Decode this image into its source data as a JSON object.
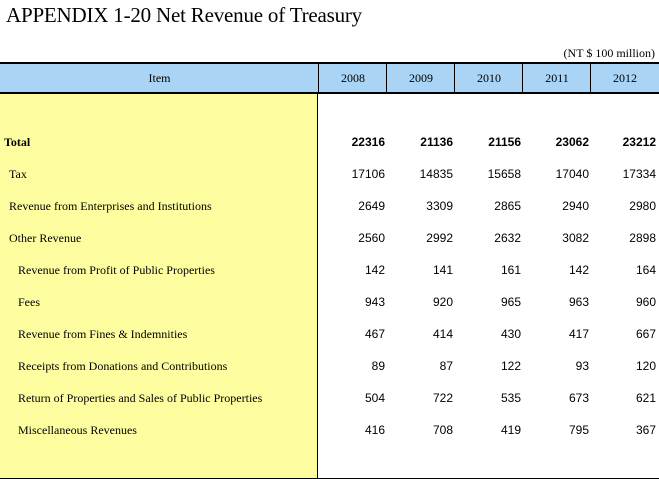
{
  "title": "APPENDIX 1-20  Net Revenue of Treasury",
  "unit": "(NT $ 100 million)",
  "table": {
    "headers": [
      "Item",
      "2008",
      "2009",
      "2010",
      "2011",
      "2012"
    ],
    "rows": [
      {
        "label": "Total",
        "values": [
          "22316",
          "21136",
          "21156",
          "23062",
          "23212"
        ]
      },
      {
        "label": "Tax",
        "values": [
          "17106",
          "14835",
          "15658",
          "17040",
          "17334"
        ]
      },
      {
        "label": "Revenue from Enterprises and Institutions",
        "values": [
          "2649",
          "3309",
          "2865",
          "2940",
          "2980"
        ]
      },
      {
        "label": "Other Revenue",
        "values": [
          "2560",
          "2992",
          "2632",
          "3082",
          "2898"
        ]
      },
      {
        "label": "Revenue from Profit of Public Properties",
        "values": [
          "142",
          "141",
          "161",
          "142",
          "164"
        ]
      },
      {
        "label": "Fees",
        "values": [
          "943",
          "920",
          "965",
          "963",
          "960"
        ]
      },
      {
        "label": "Revenue from Fines & Indemnities",
        "values": [
          "467",
          "414",
          "430",
          "417",
          "667"
        ]
      },
      {
        "label": "Receipts from Donations and Contributions",
        "values": [
          "89",
          "87",
          "122",
          "93",
          "120"
        ]
      },
      {
        "label": "Return of Properties and Sales of Public Properties",
        "values": [
          "504",
          "722",
          "535",
          "673",
          "621"
        ]
      },
      {
        "label": "Miscellaneous Revenues",
        "values": [
          "416",
          "708",
          "419",
          "795",
          "367"
        ]
      }
    ]
  },
  "colors": {
    "header_bg": "#a9d4f5",
    "item_col_bg": "#fefea0"
  }
}
